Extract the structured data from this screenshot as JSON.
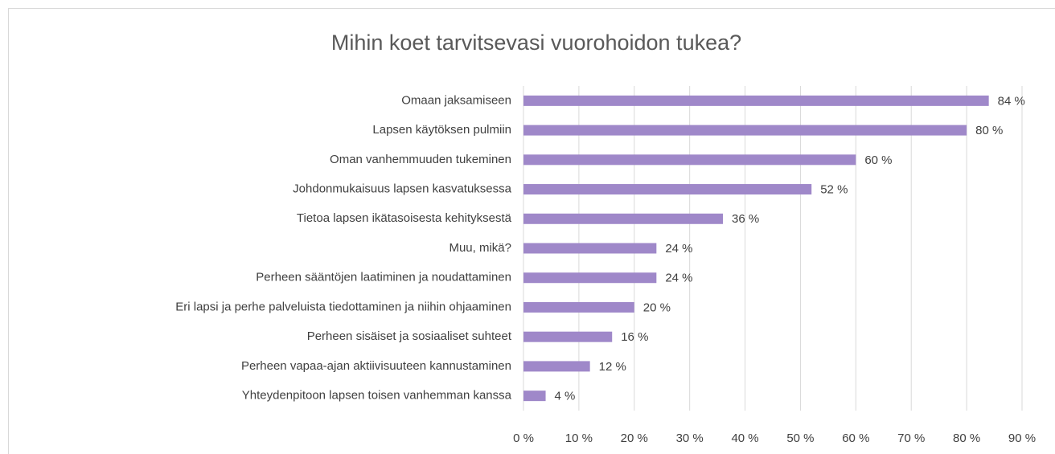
{
  "chart_data": {
    "type": "barh",
    "title": "Mihin koet tarvitsevasi vuorohoidon tukea?",
    "categories": [
      "Omaan jaksamiseen",
      "Lapsen käytöksen pulmiin",
      "Oman vanhemmuuden tukeminen",
      "Johdonmukaisuus lapsen kasvatuksessa",
      "Tietoa lapsen ikätasoisesta kehityksestä",
      "Muu, mikä?",
      "Perheen sääntöjen laatiminen ja noudattaminen",
      "Eri lapsi ja perhe palveluista tiedottaminen ja niihin ohjaaminen",
      "Perheen sisäiset ja sosiaaliset suhteet",
      "Perheen vapaa-ajan aktiivisuuteen kannustaminen",
      "Yhteydenpitoon lapsen toisen vanhemman kanssa"
    ],
    "values": [
      84,
      80,
      60,
      52,
      36,
      24,
      24,
      20,
      16,
      12,
      4
    ],
    "value_labels": [
      "84 %",
      "80 %",
      "60 %",
      "52 %",
      "36 %",
      "24 %",
      "24 %",
      "20 %",
      "16 %",
      "12 %",
      "4 %"
    ],
    "color": "#9f88c9",
    "xlim": [
      0,
      90
    ],
    "xticks": [
      {
        "value": 0,
        "label": "0 %"
      },
      {
        "value": 10,
        "label": "10 %"
      },
      {
        "value": 20,
        "label": "20 %"
      },
      {
        "value": 30,
        "label": "30 %"
      },
      {
        "value": 40,
        "label": "40 %"
      },
      {
        "value": 50,
        "label": "50 %"
      },
      {
        "value": 60,
        "label": "60 %"
      },
      {
        "value": 70,
        "label": "70 %"
      },
      {
        "value": 80,
        "label": "80 %"
      },
      {
        "value": 90,
        "label": "90 %"
      }
    ],
    "grid": true
  }
}
